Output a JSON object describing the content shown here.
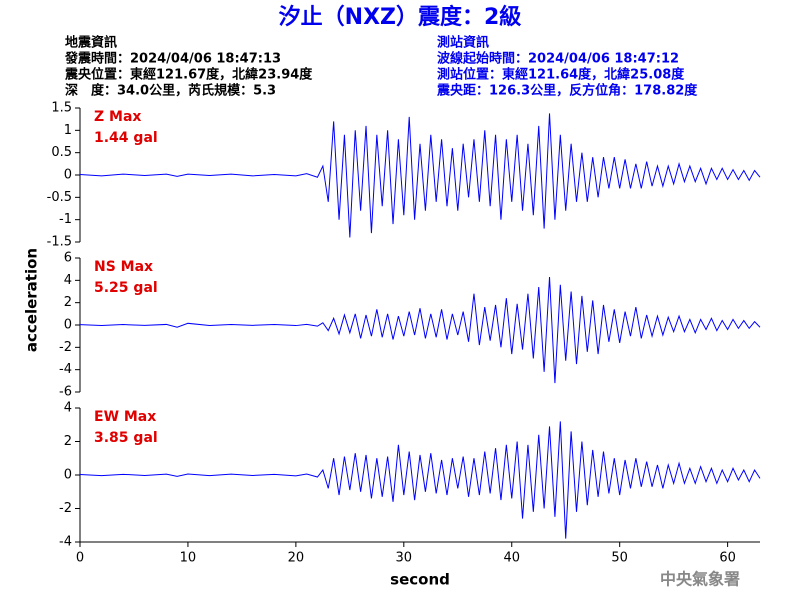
{
  "header": {
    "title": "汐止（NXZ）震度：2級",
    "quake": [
      "地震資訊",
      "發震時間：2024/04/06 18:47:13",
      "震央位置：東經121.67度，北緯23.94度",
      "深　度：34.0公里，芮氏規模：5.3"
    ],
    "station": [
      "測站資訊",
      "波線起始時間：2024/04/06 18:47:12",
      "測站位置：東經121.64度，北緯25.08度",
      "震央距：126.3公里，反方位角：178.82度"
    ],
    "credit": "中央氣象署"
  },
  "chart_data": [
    {
      "type": "line",
      "label": "Z Max",
      "max_label": "1.44 gal",
      "color": "#0000ff",
      "x": [
        0,
        2,
        4,
        6,
        8,
        9,
        10,
        12,
        14,
        16,
        18,
        20,
        21,
        22,
        22.5,
        23,
        23.5,
        24,
        24.5,
        25,
        25.5,
        26,
        26.5,
        27,
        27.5,
        28,
        28.5,
        29,
        29.5,
        30,
        30.5,
        31,
        31.5,
        32,
        32.5,
        33,
        33.5,
        34,
        34.5,
        35,
        35.5,
        36,
        36.5,
        37,
        37.5,
        38,
        38.5,
        39,
        39.5,
        40,
        40.5,
        41,
        41.5,
        42,
        42.5,
        43,
        43.5,
        44,
        44.5,
        45,
        45.5,
        46,
        46.5,
        47,
        47.5,
        48,
        48.5,
        49,
        49.5,
        50,
        50.5,
        51,
        51.5,
        52,
        52.5,
        53,
        53.5,
        54,
        54.5,
        55,
        55.5,
        56,
        56.5,
        57,
        57.5,
        58,
        58.5,
        59,
        59.5,
        60,
        60.5,
        61,
        61.5,
        62,
        62.5,
        63
      ],
      "values": [
        0.01,
        -0.02,
        0.02,
        -0.01,
        0.02,
        -0.03,
        0.02,
        -0.01,
        0.02,
        -0.02,
        0.01,
        -0.02,
        0.03,
        -0.05,
        0.2,
        -0.6,
        1.2,
        -1.0,
        0.9,
        -1.4,
        1.0,
        -0.8,
        1.1,
        -1.3,
        0.9,
        -0.7,
        1.0,
        -1.1,
        0.8,
        -0.9,
        1.3,
        -1.0,
        0.7,
        -0.8,
        0.9,
        -0.6,
        0.8,
        -0.7,
        0.6,
        -0.8,
        0.7,
        -0.5,
        0.8,
        -0.6,
        1.0,
        -0.7,
        0.9,
        -1.0,
        0.8,
        -0.6,
        0.9,
        -0.8,
        0.7,
        -0.9,
        1.1,
        -1.2,
        1.38,
        -1.0,
        0.9,
        -0.8,
        0.7,
        -0.6,
        0.5,
        -0.6,
        0.4,
        -0.5,
        0.4,
        -0.3,
        0.4,
        -0.3,
        0.35,
        -0.3,
        0.25,
        -0.3,
        0.3,
        -0.25,
        0.2,
        -0.25,
        0.2,
        -0.2,
        0.25,
        -0.15,
        0.2,
        -0.15,
        0.15,
        -0.2,
        0.15,
        -0.1,
        0.15,
        -0.1,
        0.12,
        -0.1,
        0.1,
        -0.12,
        0.1,
        -0.05
      ],
      "xlim": [
        0,
        63
      ],
      "ylim": [
        -1.5,
        1.5
      ],
      "yticks": [
        1.5,
        1,
        0.5,
        0,
        -0.5,
        -1,
        -1.5
      ]
    },
    {
      "type": "line",
      "label": "NS Max",
      "max_label": "5.25 gal",
      "color": "#0000ff",
      "ylabel": "acceleration",
      "x": [
        0,
        2,
        4,
        6,
        8,
        9,
        10,
        12,
        14,
        16,
        18,
        20,
        21,
        22,
        22.5,
        23,
        23.5,
        24,
        24.5,
        25,
        25.5,
        26,
        26.5,
        27,
        27.5,
        28,
        28.5,
        29,
        29.5,
        30,
        30.5,
        31,
        31.5,
        32,
        32.5,
        33,
        33.5,
        34,
        34.5,
        35,
        35.5,
        36,
        36.5,
        37,
        37.5,
        38,
        38.5,
        39,
        39.5,
        40,
        40.5,
        41,
        41.5,
        42,
        42.5,
        43,
        43.5,
        44,
        44.5,
        45,
        45.5,
        46,
        46.5,
        47,
        47.5,
        48,
        48.5,
        49,
        49.5,
        50,
        50.5,
        51,
        51.5,
        52,
        52.5,
        53,
        53.5,
        54,
        54.5,
        55,
        55.5,
        56,
        56.5,
        57,
        57.5,
        58,
        58.5,
        59,
        59.5,
        60,
        60.5,
        61,
        61.5,
        62,
        62.5,
        63
      ],
      "values": [
        0.03,
        -0.05,
        0.04,
        -0.03,
        0.05,
        -0.2,
        0.15,
        -0.04,
        0.05,
        -0.03,
        0.04,
        -0.05,
        0.06,
        -0.1,
        0.2,
        -0.5,
        0.6,
        -0.8,
        0.9,
        -0.7,
        1.0,
        -1.2,
        0.9,
        -1.0,
        1.4,
        -1.1,
        1.0,
        -1.3,
        0.8,
        -1.0,
        1.2,
        -0.9,
        1.5,
        -1.2,
        1.0,
        -1.1,
        1.4,
        -1.3,
        1.0,
        -0.9,
        1.2,
        -1.5,
        2.8,
        -1.8,
        1.6,
        -1.4,
        1.8,
        -2.0,
        2.4,
        -2.6,
        1.9,
        -2.2,
        2.8,
        -3.0,
        3.4,
        -4.2,
        4.3,
        -5.2,
        3.6,
        -3.2,
        3.0,
        -3.5,
        2.6,
        -2.4,
        2.2,
        -2.6,
        1.8,
        -1.5,
        1.4,
        -1.6,
        1.2,
        -1.0,
        1.6,
        -1.2,
        0.9,
        -1.0,
        0.8,
        -0.9,
        0.7,
        -0.6,
        0.8,
        -0.6,
        0.5,
        -0.7,
        0.5,
        -0.4,
        0.6,
        -0.5,
        0.4,
        -0.4,
        0.5,
        -0.3,
        0.4,
        -0.3,
        0.3,
        -0.2
      ],
      "xlim": [
        0,
        63
      ],
      "ylim": [
        -6,
        6
      ],
      "yticks": [
        6,
        4,
        2,
        0,
        -2,
        -4,
        -6
      ]
    },
    {
      "type": "line",
      "label": "EW Max",
      "max_label": "3.85 gal",
      "color": "#0000ff",
      "xlabel": "second",
      "x": [
        0,
        2,
        4,
        6,
        8,
        9,
        10,
        12,
        14,
        16,
        18,
        20,
        21,
        22,
        22.5,
        23,
        23.5,
        24,
        24.5,
        25,
        25.5,
        26,
        26.5,
        27,
        27.5,
        28,
        28.5,
        29,
        29.5,
        30,
        30.5,
        31,
        31.5,
        32,
        32.5,
        33,
        33.5,
        34,
        34.5,
        35,
        35.5,
        36,
        36.5,
        37,
        37.5,
        38,
        38.5,
        39,
        39.5,
        40,
        40.5,
        41,
        41.5,
        42,
        42.5,
        43,
        43.5,
        44,
        44.5,
        45,
        45.5,
        46,
        46.5,
        47,
        47.5,
        48,
        48.5,
        49,
        49.5,
        50,
        50.5,
        51,
        51.5,
        52,
        52.5,
        53,
        53.5,
        54,
        54.5,
        55,
        55.5,
        56,
        56.5,
        57,
        57.5,
        58,
        58.5,
        59,
        59.5,
        60,
        60.5,
        61,
        61.5,
        62,
        62.5,
        63
      ],
      "values": [
        0.03,
        -0.04,
        0.04,
        -0.03,
        0.05,
        -0.08,
        0.06,
        -0.04,
        0.05,
        -0.03,
        0.04,
        -0.05,
        0.06,
        -0.12,
        0.3,
        -0.8,
        1.0,
        -1.2,
        1.1,
        -0.9,
        1.3,
        -1.0,
        1.2,
        -1.4,
        1.0,
        -1.3,
        1.1,
        -1.6,
        1.8,
        -1.2,
        1.4,
        -1.5,
        1.2,
        -1.0,
        1.3,
        -1.1,
        0.9,
        -1.2,
        1.0,
        -0.8,
        1.1,
        -1.3,
        1.0,
        -1.2,
        1.4,
        -1.1,
        1.6,
        -1.5,
        1.8,
        -1.4,
        2.0,
        -2.6,
        1.8,
        -2.2,
        2.4,
        -2.0,
        2.9,
        -2.5,
        3.2,
        -3.8,
        2.6,
        -2.2,
        2.0,
        -1.8,
        1.5,
        -1.3,
        1.4,
        -1.1,
        1.0,
        -1.2,
        0.9,
        -0.8,
        1.0,
        -0.7,
        0.8,
        -0.7,
        0.6,
        -0.8,
        0.6,
        -0.5,
        0.7,
        -0.5,
        0.4,
        -0.5,
        0.5,
        -0.4,
        0.4,
        -0.5,
        0.3,
        -0.4,
        0.4,
        -0.3,
        0.3,
        -0.4,
        0.3,
        -0.2
      ],
      "xlim": [
        0,
        63
      ],
      "ylim": [
        -4,
        4
      ],
      "yticks": [
        4,
        2,
        0,
        -2,
        -4
      ],
      "xticks": [
        0,
        10,
        20,
        30,
        40,
        50,
        60
      ]
    }
  ]
}
